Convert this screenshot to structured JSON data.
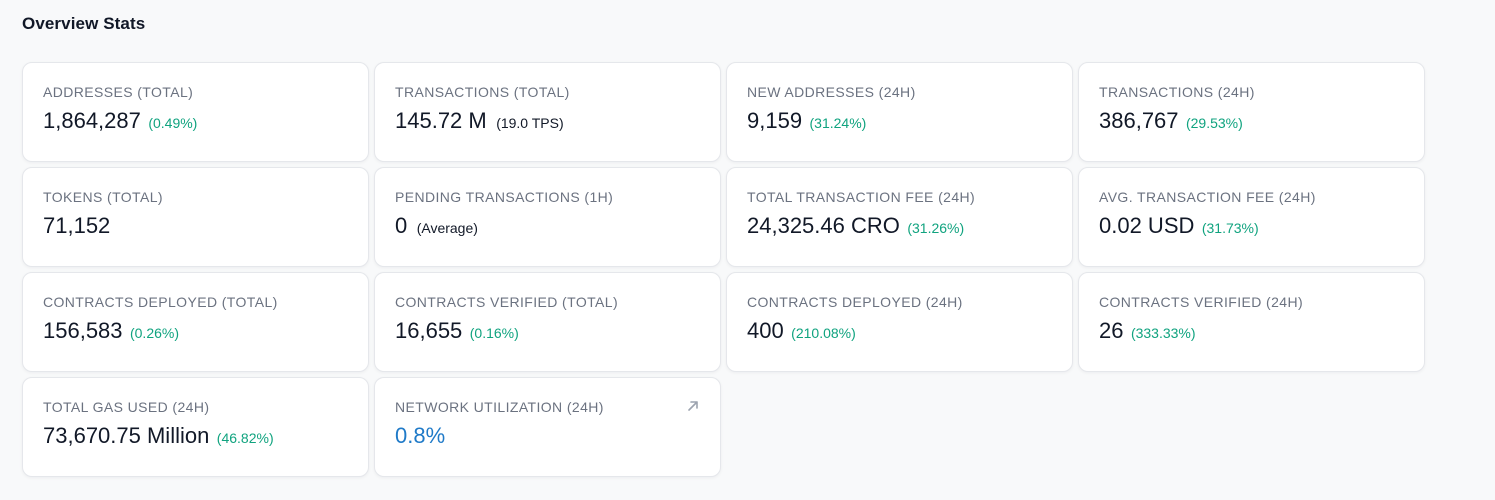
{
  "section": {
    "title": "Overview Stats"
  },
  "cards": [
    {
      "label": "ADDRESSES (TOTAL)",
      "value": "1,864,287",
      "change": "(0.49%)"
    },
    {
      "label": "TRANSACTIONS (TOTAL)",
      "value": "145.72 M",
      "suffix": "(19.0 TPS)"
    },
    {
      "label": "NEW ADDRESSES (24H)",
      "value": "9,159",
      "change": "(31.24%)"
    },
    {
      "label": "TRANSACTIONS (24H)",
      "value": "386,767",
      "change": "(29.53%)"
    },
    {
      "label": "TOKENS (TOTAL)",
      "value": "71,152"
    },
    {
      "label": "PENDING TRANSACTIONS (1H)",
      "value": "0",
      "suffix": "(Average)"
    },
    {
      "label": "TOTAL TRANSACTION FEE (24H)",
      "value": "24,325.46 CRO",
      "change": "(31.26%)"
    },
    {
      "label": "AVG. TRANSACTION FEE (24H)",
      "value": "0.02 USD",
      "change": "(31.73%)"
    },
    {
      "label": "CONTRACTS DEPLOYED (TOTAL)",
      "value": "156,583",
      "change": "(0.26%)"
    },
    {
      "label": "CONTRACTS VERIFIED (TOTAL)",
      "value": "16,655",
      "change": "(0.16%)"
    },
    {
      "label": "CONTRACTS DEPLOYED (24H)",
      "value": "400",
      "change": "(210.08%)"
    },
    {
      "label": "CONTRACTS VERIFIED (24H)",
      "value": "26",
      "change": "(333.33%)"
    },
    {
      "label": "TOTAL GAS USED (24H)",
      "value": "73,670.75 Million",
      "change": "(46.82%)"
    },
    {
      "label": "NETWORK UTILIZATION (24H)",
      "value": "0.8%",
      "icon": "arrow-up-right-icon"
    }
  ],
  "colors": {
    "change_positive": "#10a37f",
    "link_value": "#1f7ac8",
    "label": "#6b7280"
  }
}
